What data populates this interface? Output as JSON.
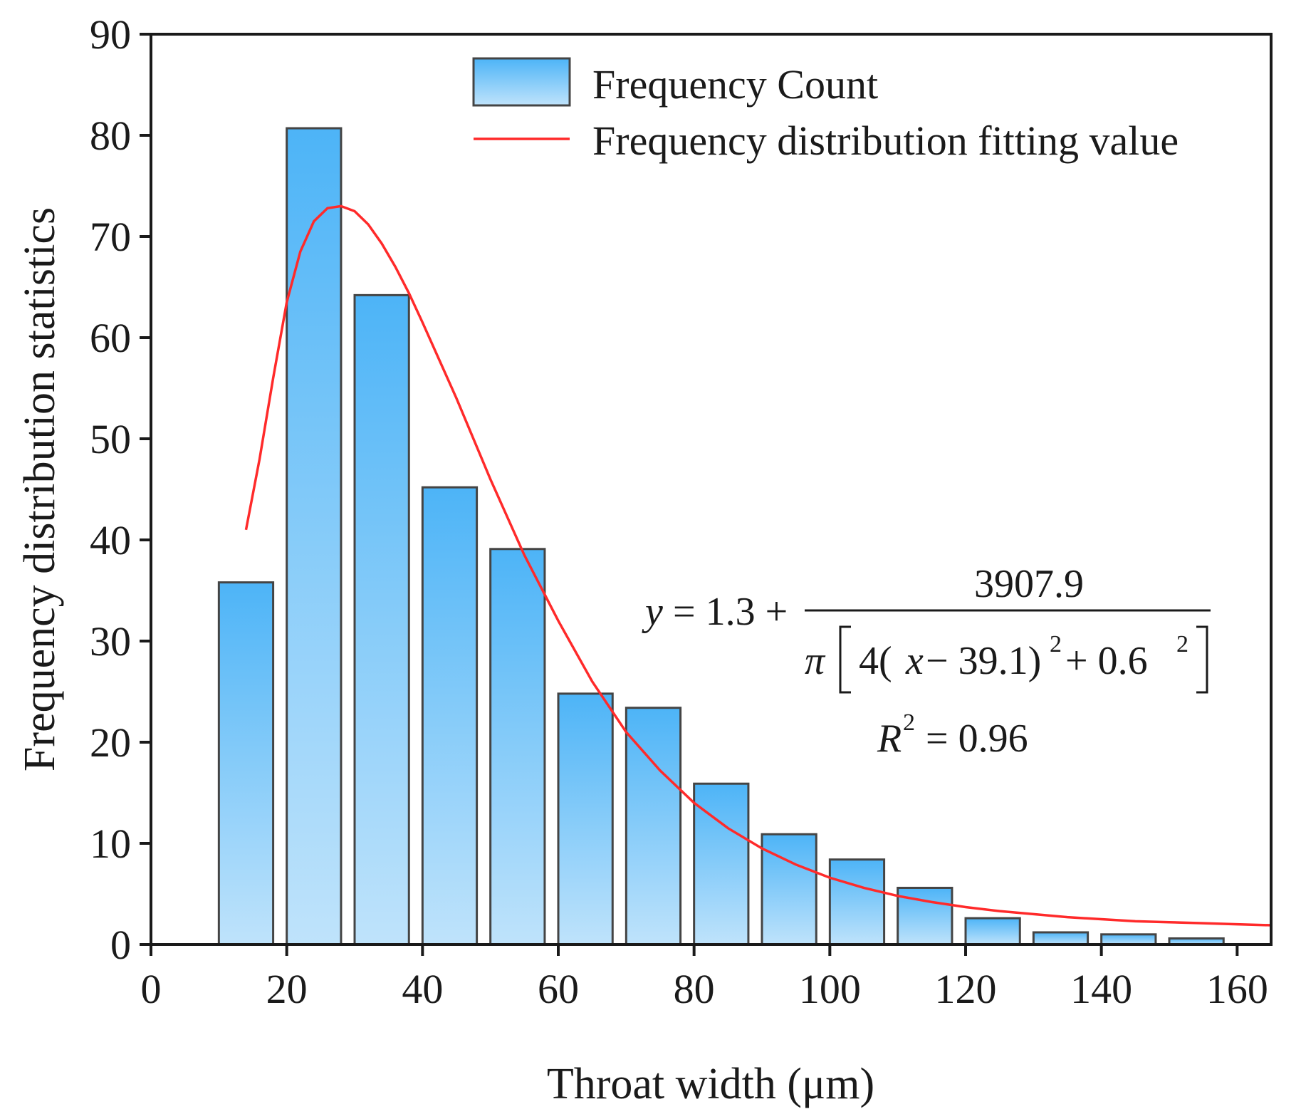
{
  "chart_data": {
    "type": "bar",
    "xlabel": "Throat width (μm)",
    "ylabel": "Frequency distribution statistics",
    "xlim": [
      0,
      165
    ],
    "ylim": [
      0,
      90
    ],
    "xticks": [
      "0",
      "20",
      "40",
      "60",
      "80",
      "100",
      "120",
      "140",
      "160"
    ],
    "yticks": [
      "0",
      "10",
      "20",
      "30",
      "40",
      "50",
      "60",
      "70",
      "80",
      "90"
    ],
    "grid": false,
    "legend_position": "top-right",
    "series": [
      {
        "name": "Frequency Count",
        "kind": "bar",
        "color_top": "#4db4f7",
        "color_bottom": "#bfe3fb",
        "bin_width": 8,
        "x": [
          14,
          24,
          34,
          44,
          54,
          64,
          74,
          84,
          94,
          104,
          114,
          124,
          134,
          144,
          154
        ],
        "values": [
          35.8,
          80.7,
          64.2,
          45.2,
          39.1,
          24.8,
          23.4,
          15.9,
          10.9,
          8.4,
          5.6,
          2.6,
          1.2,
          1.0,
          0.6
        ]
      },
      {
        "name": "Frequency distribution fitting value",
        "kind": "line",
        "color": "#ff2a2a",
        "x": [
          14,
          16,
          18,
          20,
          22,
          24,
          26,
          28,
          30,
          32,
          34,
          36,
          38,
          40,
          45,
          50,
          55,
          60,
          65,
          70,
          75,
          80,
          85,
          90,
          95,
          100,
          105,
          110,
          115,
          120,
          125,
          130,
          135,
          140,
          145,
          150,
          155,
          160,
          165
        ],
        "values": [
          41,
          48,
          56,
          63.5,
          68.5,
          71.5,
          72.8,
          73,
          72.5,
          71.2,
          69.3,
          67,
          64.4,
          61.5,
          54,
          46,
          38.5,
          32,
          26,
          21,
          17.2,
          14,
          11.5,
          9.5,
          7.9,
          6.6,
          5.6,
          4.8,
          4.2,
          3.7,
          3.3,
          3.0,
          2.7,
          2.5,
          2.3,
          2.2,
          2.1,
          2.0,
          1.9
        ]
      }
    ],
    "annotations": {
      "eq_prefix": "y",
      "eq_equals": "= 1.3 +",
      "eq_numerator": "3907.9",
      "eq_pi": "π",
      "eq_denominator_pre": "4(",
      "eq_x": "x",
      "eq_denominator_mid": " − 39.1)",
      "eq_exp_a": "2",
      "eq_denominator_post": " + 0.6",
      "eq_exp_b": "2",
      "r2_symbol": "R",
      "r2_exp": "2",
      "r2_value": "= 0.96"
    }
  }
}
